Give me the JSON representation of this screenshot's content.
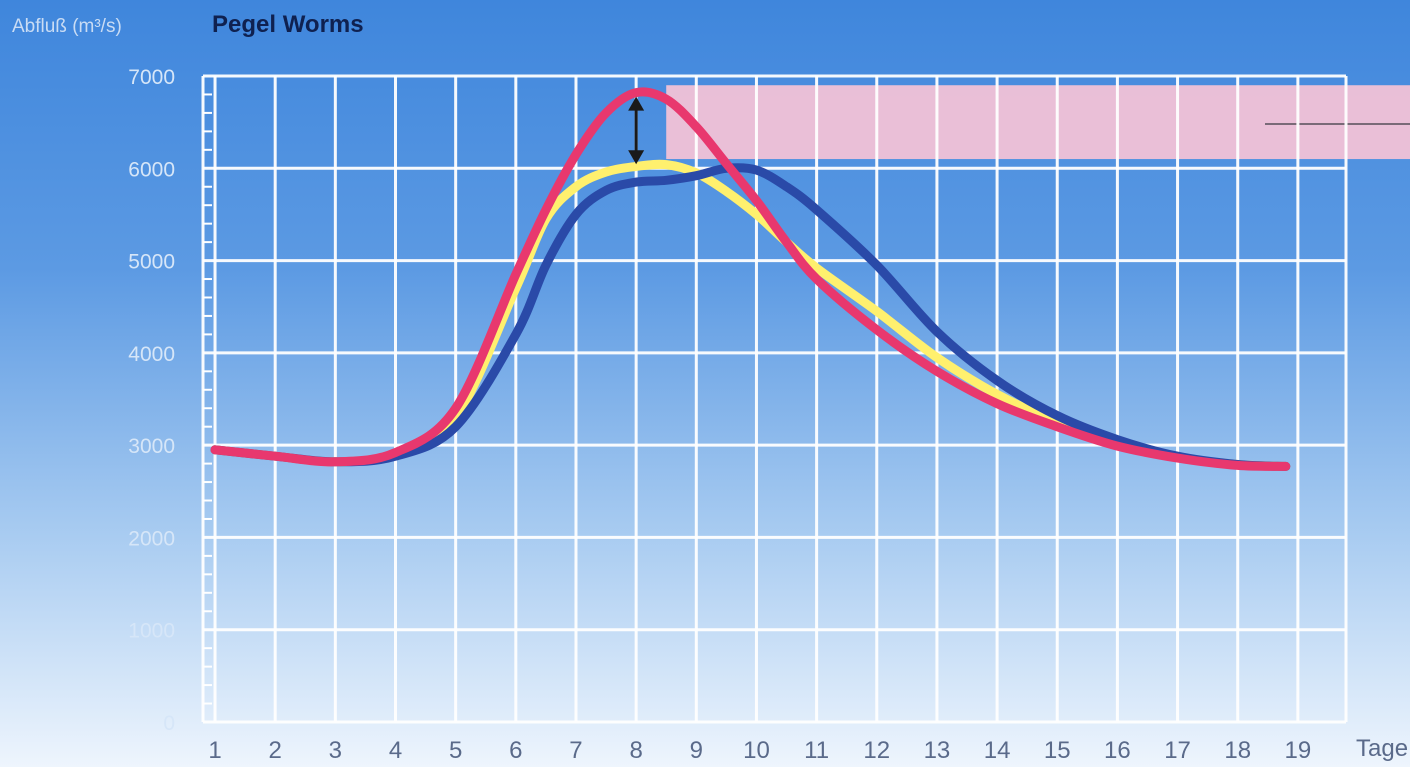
{
  "chart_data": {
    "type": "line",
    "title": "Pegel Worms",
    "ylabel": "Abfluß (m³/s)",
    "xlabel": "Tage",
    "x": [
      1,
      2,
      3,
      4,
      5,
      6,
      7,
      8,
      9,
      10,
      11,
      12,
      13,
      14,
      15,
      16,
      17,
      18,
      19
    ],
    "x_tick_labels": [
      "1",
      "2",
      "3",
      "4",
      "5",
      "6",
      "7",
      "8",
      "9",
      "10",
      "11",
      "12",
      "13",
      "14",
      "15",
      "16",
      "17",
      "18",
      "19"
    ],
    "y_ticks": [
      0,
      1000,
      2000,
      3000,
      4000,
      5000,
      6000,
      7000
    ],
    "xlim": [
      0.8,
      19.8
    ],
    "ylim": [
      0,
      7000
    ],
    "grid": true,
    "series": [
      {
        "color": "#fff06e",
        "points": [
          [
            1,
            2950
          ],
          [
            2,
            2880
          ],
          [
            3,
            2820
          ],
          [
            4,
            2900
          ],
          [
            5,
            3300
          ],
          [
            6,
            4700
          ],
          [
            6.5,
            5450
          ],
          [
            7,
            5800
          ],
          [
            7.5,
            5960
          ],
          [
            8,
            6020
          ],
          [
            8.5,
            6040
          ],
          [
            9,
            5950
          ],
          [
            9.5,
            5750
          ],
          [
            10,
            5500
          ],
          [
            10.5,
            5200
          ],
          [
            11,
            4920
          ],
          [
            12,
            4450
          ],
          [
            13,
            3950
          ],
          [
            14,
            3550
          ],
          [
            15,
            3250
          ],
          [
            16,
            3020
          ],
          [
            17,
            2870
          ],
          [
            18,
            2790
          ],
          [
            18.8,
            2770
          ]
        ]
      },
      {
        "color": "#2a4aa8",
        "points": [
          [
            1,
            2950
          ],
          [
            2,
            2880
          ],
          [
            3,
            2820
          ],
          [
            4,
            2880
          ],
          [
            5,
            3200
          ],
          [
            6,
            4200
          ],
          [
            6.5,
            4950
          ],
          [
            7,
            5500
          ],
          [
            7.5,
            5760
          ],
          [
            8,
            5850
          ],
          [
            8.5,
            5870
          ],
          [
            9,
            5920
          ],
          [
            9.5,
            6000
          ],
          [
            10,
            5980
          ],
          [
            10.5,
            5800
          ],
          [
            11,
            5550
          ],
          [
            12,
            4950
          ],
          [
            13,
            4230
          ],
          [
            14,
            3700
          ],
          [
            15,
            3320
          ],
          [
            16,
            3060
          ],
          [
            17,
            2880
          ],
          [
            18,
            2790
          ],
          [
            18.8,
            2770
          ]
        ]
      },
      {
        "color": "#e8386e",
        "points": [
          [
            1,
            2950
          ],
          [
            2,
            2880
          ],
          [
            3,
            2820
          ],
          [
            4,
            2920
          ],
          [
            5,
            3400
          ],
          [
            6,
            4850
          ],
          [
            6.5,
            5550
          ],
          [
            7,
            6150
          ],
          [
            7.5,
            6600
          ],
          [
            8,
            6820
          ],
          [
            8.5,
            6750
          ],
          [
            9,
            6450
          ],
          [
            9.5,
            6050
          ],
          [
            10,
            5650
          ],
          [
            10.5,
            5200
          ],
          [
            11,
            4800
          ],
          [
            12,
            4250
          ],
          [
            13,
            3800
          ],
          [
            14,
            3450
          ],
          [
            15,
            3200
          ],
          [
            16,
            2990
          ],
          [
            17,
            2860
          ],
          [
            18,
            2780
          ],
          [
            18.8,
            2770
          ]
        ]
      }
    ],
    "band": {
      "y_from": 6100,
      "y_to": 6900,
      "x_from": 8.5,
      "color": "#f7c3d6"
    },
    "arrow": {
      "x": 8,
      "y_from": 6000,
      "y_to": 6820
    }
  }
}
